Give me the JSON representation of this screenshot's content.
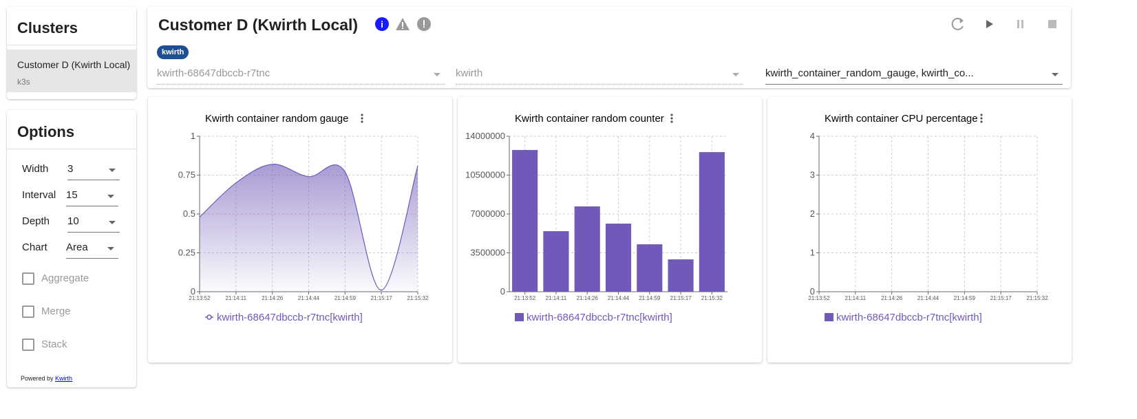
{
  "sidebar": {
    "clusters_title": "Clusters",
    "cluster": {
      "name": "Customer D (Kwirth Local)",
      "kind": "k3s"
    },
    "options_title": "Options",
    "fields": [
      {
        "label": "Width",
        "value": "3"
      },
      {
        "label": "Interval",
        "value": "15"
      },
      {
        "label": "Depth",
        "value": "10"
      },
      {
        "label": "Chart",
        "value": "Area"
      }
    ],
    "checkboxes": [
      "Aggregate",
      "Merge",
      "Stack"
    ],
    "powered_by": "Powered by",
    "powered_link": "Kwirth"
  },
  "header": {
    "title": "Customer D (Kwirth Local)",
    "chip": "kwirth",
    "selects": [
      "kwirth-68647dbccb-r7tnc",
      "kwirth",
      "kwirth_container_random_gauge, kwirth_co..."
    ]
  },
  "chart_data": [
    {
      "type": "area",
      "title": "Kwirth container random gauge",
      "categories": [
        "21:13:52",
        "21:14:11",
        "21:14:26",
        "21:14:44",
        "21:14:59",
        "21:15:17",
        "21:15:32"
      ],
      "series": [
        {
          "name": "kwirth-68647dbccb-r7tnc[kwirth]",
          "color": "#7059b8",
          "values": [
            0.48,
            0.7,
            0.82,
            0.74,
            0.77,
            0.01,
            0.81
          ]
        }
      ],
      "ylim": [
        0,
        1
      ],
      "yticks": [
        0,
        0.25,
        0.5,
        0.75,
        1
      ],
      "grid": true
    },
    {
      "type": "bar",
      "title": "Kwirth container random counter",
      "categories": [
        "21:13:52",
        "21:14:11",
        "21:14:26",
        "21:14:44",
        "21:14:59",
        "21:15:17",
        "21:15:32"
      ],
      "series": [
        {
          "name": "kwirth-68647dbccb-r7tnc[kwirth]",
          "color": "#7059b8",
          "values": [
            12760000,
            5450000,
            7680000,
            6130000,
            4270000,
            2910000,
            12570000
          ]
        }
      ],
      "ylim": [
        0,
        14000000
      ],
      "yticks": [
        0,
        3500000,
        7000000,
        10500000,
        14000000
      ],
      "grid": true
    },
    {
      "type": "line",
      "title": "Kwirth container CPU percentage",
      "categories": [
        "21:13:52",
        "21:14:11",
        "21:14:26",
        "21:14:44",
        "21:14:59",
        "21:15:17",
        "21:15:32"
      ],
      "series": [
        {
          "name": "kwirth-68647dbccb-r7tnc[kwirth]",
          "color": "#7059b8",
          "values": [
            null,
            null,
            null,
            null,
            null,
            null,
            null
          ]
        }
      ],
      "ylim": [
        0,
        4
      ],
      "yticks": [
        0,
        1,
        2,
        3,
        4
      ],
      "grid": true
    }
  ]
}
